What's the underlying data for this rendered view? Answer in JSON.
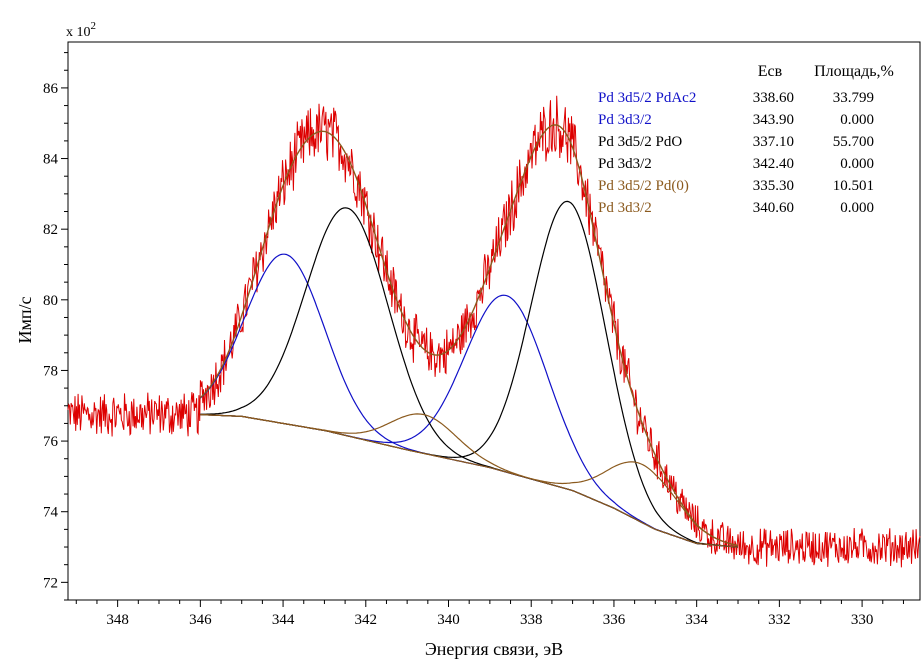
{
  "chart_data": {
    "type": "line",
    "scale_label": "x 10",
    "scale_exponent": "2",
    "xlabel": "Энергия связи, эВ",
    "ylabel": "Имп/с",
    "xlim": [
      349.2,
      328.6
    ],
    "ylim": [
      71.5,
      87.3
    ],
    "x_ticks": [
      348,
      346,
      344,
      342,
      340,
      338,
      336,
      334,
      332,
      330
    ],
    "y_ticks": [
      72,
      74,
      76,
      78,
      80,
      82,
      84,
      86
    ],
    "grid": false,
    "legend_position": "top-right",
    "legend_header": {
      "energy": "Есв",
      "area": "Площадь,%"
    },
    "components": [
      {
        "name": "Pd 3d5/2 PdAc2",
        "energy": "338.60",
        "area": "33.799",
        "center": 338.6,
        "height": 5.0,
        "sigma": 1.0,
        "color": "#1010c8"
      },
      {
        "name": "Pd 3d3/2",
        "energy": "343.90",
        "area": "0.000",
        "center": 343.95,
        "height": 4.8,
        "sigma": 0.95,
        "color": "#1010c8"
      },
      {
        "name": "Pd 3d5/2 PdO",
        "energy": "337.10",
        "area": "55.700",
        "center": 337.1,
        "height": 8.15,
        "sigma": 0.9,
        "color": "#000000"
      },
      {
        "name": "Pd 3d3/2",
        "energy": "342.40",
        "area": "0.000",
        "center": 342.45,
        "height": 6.45,
        "sigma": 1.0,
        "color": "#000000"
      },
      {
        "name": "Pd 3d5/2 Pd(0)",
        "energy": "335.30",
        "area": "10.501",
        "center": 335.3,
        "height": 1.65,
        "sigma": 0.85,
        "color": "#8b5a1e"
      },
      {
        "name": "Pd 3d3/2",
        "energy": "340.60",
        "area": "0.000",
        "center": 340.6,
        "height": 1.1,
        "sigma": 0.8,
        "color": "#8b5a1e"
      }
    ],
    "background_points": [
      [
        346.0,
        76.75
      ],
      [
        345.0,
        76.7
      ],
      [
        343.0,
        76.3
      ],
      [
        341.0,
        75.75
      ],
      [
        339.0,
        75.25
      ],
      [
        337.0,
        74.6
      ],
      [
        336.0,
        74.1
      ],
      [
        335.0,
        73.5
      ],
      [
        334.0,
        73.1
      ],
      [
        333.0,
        73.0
      ]
    ],
    "colors": {
      "raw": "#dd0000",
      "envelope": "#8b5a1e",
      "background": "#8b5a1e"
    }
  }
}
